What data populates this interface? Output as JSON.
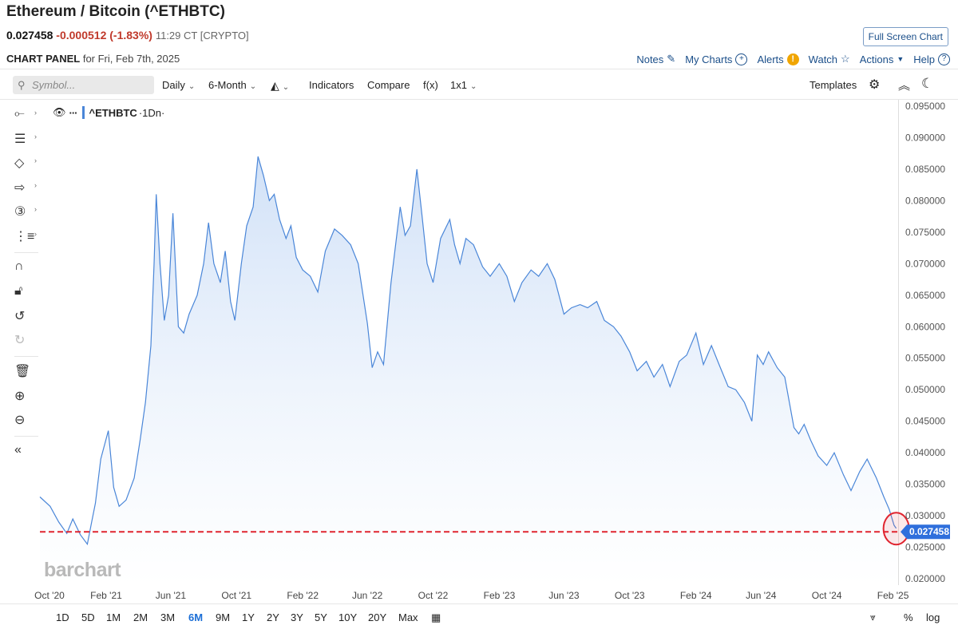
{
  "header": {
    "title": "Ethereum / Bitcoin (^ETHBTC)",
    "price": "0.027458",
    "change": "-0.000512 (-1.83%)",
    "time": "11:29 CT [CRYPTO]",
    "fullscreen_label": "Full Screen Chart"
  },
  "panel": {
    "label": "CHART PANEL",
    "date": "for Fri, Feb 7th, 2025",
    "links": {
      "notes": "Notes",
      "my_charts": "My Charts",
      "alerts": "Alerts",
      "watch": "Watch",
      "actions": "Actions",
      "help": "Help"
    }
  },
  "toolbar": {
    "search_placeholder": "Symbol...",
    "period": "Daily",
    "range": "6-Month",
    "indicators": "Indicators",
    "compare": "Compare",
    "fx": "f(x)",
    "layout": "1x1",
    "templates": "Templates"
  },
  "legend": {
    "symbol": "^ETHBTC",
    "interval": "·1Dn·"
  },
  "watermark": "barchart",
  "ranges": [
    "1D",
    "5D",
    "1M",
    "2M",
    "3M",
    "6M",
    "9M",
    "1Y",
    "2Y",
    "3Y",
    "5Y",
    "10Y",
    "20Y",
    "Max"
  ],
  "active_range": "6M",
  "bottom_right": {
    "percent": "%",
    "log": "log"
  },
  "colors": {
    "line": "#4a86d8",
    "area_top": "#cfe0f7",
    "price_tag": "#2f6fdc",
    "ref_line": "#e0242f",
    "down": "#c0392b"
  },
  "chart_data": {
    "type": "area",
    "series_name": "^ETHBTC",
    "last_price": 0.027458,
    "last_label": "0.027458",
    "ylim": [
      0.019,
      0.096
    ],
    "yticks": [
      0.095,
      0.09,
      0.085,
      0.08,
      0.075,
      0.07,
      0.065,
      0.06,
      0.055,
      0.05,
      0.045,
      0.04,
      0.035,
      0.03,
      0.025,
      0.02
    ],
    "ytick_labels": [
      "0.095000",
      "0.090000",
      "0.085000",
      "0.080000",
      "0.075000",
      "0.070000",
      "0.065000",
      "0.060000",
      "0.055000",
      "0.050000",
      "0.045000",
      "0.040000",
      "0.035000",
      "0.030000",
      "0.025000",
      "0.020000"
    ],
    "xlim": [
      "2020-10-01",
      "2025-02-12"
    ],
    "xticks": [
      "2020-10-01",
      "2021-02-01",
      "2021-06-01",
      "2021-10-01",
      "2022-02-01",
      "2022-06-01",
      "2022-10-01",
      "2023-02-01",
      "2023-06-01",
      "2023-10-01",
      "2024-02-01",
      "2024-06-01",
      "2024-10-01",
      "2025-02-01"
    ],
    "xtick_labels": [
      "Oct '20",
      "Feb '21",
      "Jun '21",
      "Oct '21",
      "Feb '22",
      "Jun '22",
      "Oct '22",
      "Feb '23",
      "Jun '23",
      "Oct '23",
      "Feb '24",
      "Jun '24",
      "Oct '24",
      "Feb '25"
    ],
    "x": [
      "2020-10-01",
      "2020-10-20",
      "2020-11-05",
      "2020-11-20",
      "2020-12-01",
      "2020-12-15",
      "2020-12-28",
      "2021-01-05",
      "2021-01-12",
      "2021-01-22",
      "2021-02-05",
      "2021-02-15",
      "2021-02-25",
      "2021-03-10",
      "2021-03-25",
      "2021-04-05",
      "2021-04-15",
      "2021-04-25",
      "2021-05-01",
      "2021-05-05",
      "2021-05-12",
      "2021-05-20",
      "2021-05-28",
      "2021-06-05",
      "2021-06-15",
      "2021-06-25",
      "2021-07-05",
      "2021-07-20",
      "2021-08-01",
      "2021-08-10",
      "2021-08-20",
      "2021-09-01",
      "2021-09-10",
      "2021-09-20",
      "2021-09-28",
      "2021-10-10",
      "2021-10-20",
      "2021-11-01",
      "2021-11-10",
      "2021-11-20",
      "2021-12-01",
      "2021-12-10",
      "2021-12-20",
      "2022-01-01",
      "2022-01-10",
      "2022-01-20",
      "2022-02-01",
      "2022-02-15",
      "2022-03-01",
      "2022-03-15",
      "2022-04-01",
      "2022-04-15",
      "2022-05-01",
      "2022-05-15",
      "2022-06-01",
      "2022-06-10",
      "2022-06-20",
      "2022-07-01",
      "2022-07-15",
      "2022-08-01",
      "2022-08-10",
      "2022-08-20",
      "2022-09-01",
      "2022-09-10",
      "2022-09-20",
      "2022-10-01",
      "2022-10-15",
      "2022-11-01",
      "2022-11-10",
      "2022-11-20",
      "2022-12-01",
      "2022-12-15",
      "2023-01-01",
      "2023-01-15",
      "2023-02-01",
      "2023-02-15",
      "2023-03-01",
      "2023-03-15",
      "2023-04-01",
      "2023-04-15",
      "2023-05-01",
      "2023-05-15",
      "2023-06-01",
      "2023-06-15",
      "2023-07-01",
      "2023-07-15",
      "2023-08-01",
      "2023-08-15",
      "2023-09-01",
      "2023-09-15",
      "2023-10-01",
      "2023-10-15",
      "2023-11-01",
      "2023-11-15",
      "2023-12-01",
      "2023-12-15",
      "2024-01-01",
      "2024-01-15",
      "2024-02-01",
      "2024-02-15",
      "2024-03-01",
      "2024-03-15",
      "2024-04-01",
      "2024-04-15",
      "2024-05-01",
      "2024-05-15",
      "2024-05-25",
      "2024-06-05",
      "2024-06-15",
      "2024-07-01",
      "2024-07-15",
      "2024-08-01",
      "2024-08-10",
      "2024-08-20",
      "2024-09-01",
      "2024-09-15",
      "2024-10-01",
      "2024-10-15",
      "2024-11-01",
      "2024-11-15",
      "2024-12-01",
      "2024-12-15",
      "2025-01-01",
      "2025-01-15",
      "2025-01-25",
      "2025-02-03",
      "2025-02-07"
    ],
    "y": [
      0.033,
      0.0315,
      0.029,
      0.0272,
      0.0295,
      0.027,
      0.0255,
      0.029,
      0.032,
      0.039,
      0.0435,
      0.0345,
      0.0315,
      0.0325,
      0.036,
      0.042,
      0.048,
      0.057,
      0.07,
      0.081,
      0.07,
      0.061,
      0.065,
      0.078,
      0.06,
      0.059,
      0.062,
      0.065,
      0.07,
      0.0765,
      0.07,
      0.067,
      0.072,
      0.064,
      0.061,
      0.07,
      0.076,
      0.079,
      0.087,
      0.084,
      0.08,
      0.081,
      0.077,
      0.074,
      0.076,
      0.071,
      0.069,
      0.068,
      0.0655,
      0.072,
      0.0755,
      0.0745,
      0.073,
      0.07,
      0.0605,
      0.0535,
      0.056,
      0.054,
      0.067,
      0.079,
      0.0745,
      0.076,
      0.085,
      0.078,
      0.07,
      0.067,
      0.074,
      0.077,
      0.073,
      0.07,
      0.074,
      0.073,
      0.0695,
      0.068,
      0.07,
      0.068,
      0.064,
      0.067,
      0.069,
      0.068,
      0.07,
      0.0675,
      0.062,
      0.063,
      0.0635,
      0.063,
      0.064,
      0.061,
      0.06,
      0.0585,
      0.056,
      0.053,
      0.0545,
      0.052,
      0.054,
      0.0505,
      0.0545,
      0.0555,
      0.059,
      0.054,
      0.057,
      0.054,
      0.0505,
      0.05,
      0.048,
      0.045,
      0.0555,
      0.054,
      0.056,
      0.0535,
      0.052,
      0.044,
      0.043,
      0.0445,
      0.042,
      0.0395,
      0.038,
      0.04,
      0.0365,
      0.034,
      0.037,
      0.039,
      0.036,
      0.033,
      0.031,
      0.0285,
      0.028
    ]
  }
}
